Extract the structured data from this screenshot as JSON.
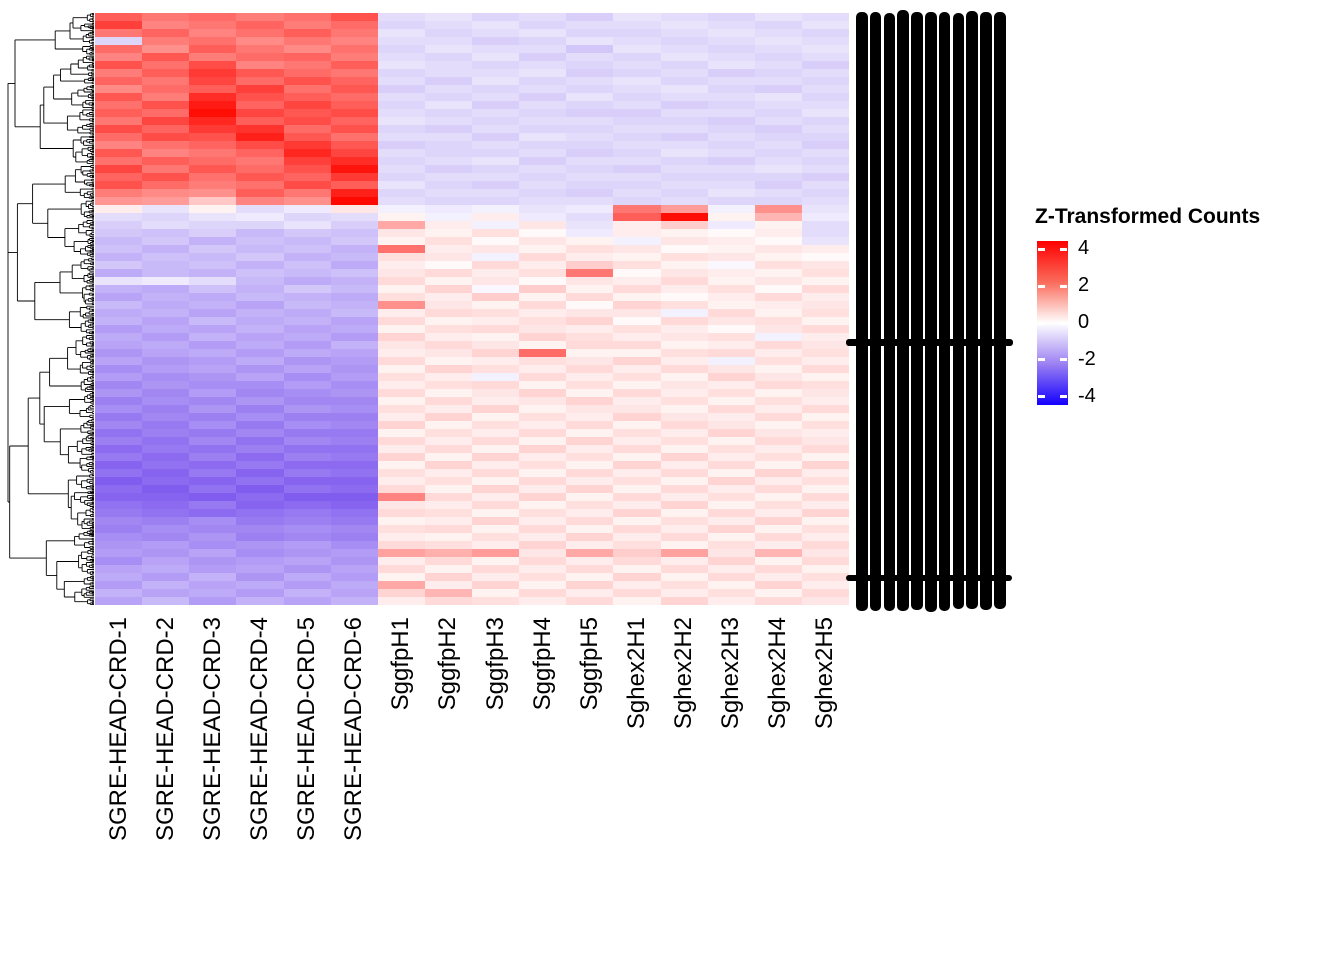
{
  "chart_data": {
    "type": "heatmap",
    "title": "",
    "xlabel": "",
    "ylabel": "",
    "columns": [
      "SGRE-HEAD-CRD-1",
      "SGRE-HEAD-CRD-2",
      "SGRE-HEAD-CRD-3",
      "SGRE-HEAD-CRD-4",
      "SGRE-HEAD-CRD-5",
      "SGRE-HEAD-CRD-6",
      "SggfpH1",
      "SggfpH2",
      "SggfpH3",
      "SggfpH4",
      "SggfpH5",
      "Sghex2H1",
      "Sghex2H2",
      "Sghex2H3",
      "Sghex2H4",
      "Sghex2H5"
    ],
    "legend": {
      "title": "Z-Transformed Counts",
      "ticks": [
        4,
        2,
        0,
        -2,
        -4
      ],
      "zlim": [
        -4.45,
        4.45
      ],
      "colors": {
        "high": "#FF0000",
        "mid": "#FFFFFF",
        "mid_low": "#8A5CF0",
        "low": "#0000FF"
      },
      "gradient": [
        "#FF0000",
        "#FA6B5B",
        "#FFFFFF",
        "#9B80F2",
        "#1400FF"
      ]
    },
    "dendrogram": {
      "side": "left",
      "color": "#000000"
    },
    "row_labels_overlapping": true,
    "matrix": [
      [
        2.6,
        2.2,
        2.4,
        2.1,
        2.3,
        2.8,
        -0.5,
        -0.4,
        -0.6,
        -0.5,
        -0.7,
        -0.4,
        -0.5,
        -0.6,
        -0.4,
        -0.5
      ],
      [
        3.1,
        2.0,
        2.2,
        2.5,
        2.1,
        2.4,
        -0.6,
        -0.5,
        -0.4,
        -0.6,
        -0.5,
        -0.5,
        -0.4,
        -0.5,
        -0.6,
        -0.4
      ],
      [
        2.2,
        2.5,
        2.0,
        2.3,
        2.6,
        2.2,
        -0.4,
        -0.6,
        -0.5,
        -0.4,
        -0.6,
        -0.6,
        -0.5,
        -0.4,
        -0.5,
        -0.6
      ],
      [
        -0.6,
        2.1,
        2.3,
        1.9,
        2.2,
        2.0,
        -0.5,
        -0.5,
        -0.7,
        -0.6,
        -0.4,
        -0.5,
        -0.6,
        -0.5,
        -0.4,
        -0.5
      ],
      [
        2.4,
        1.8,
        2.6,
        2.2,
        1.9,
        2.3,
        -0.6,
        -0.4,
        -0.5,
        -0.5,
        -0.8,
        -0.4,
        -0.5,
        -0.6,
        -0.5,
        -0.4
      ],
      [
        2.0,
        2.7,
        2.1,
        2.4,
        2.5,
        2.1,
        -0.5,
        -0.6,
        -0.4,
        -0.7,
        -0.5,
        -0.6,
        -0.4,
        -0.5,
        -0.6,
        -0.5
      ],
      [
        2.8,
        2.3,
        2.9,
        2.0,
        2.2,
        2.6,
        -0.4,
        -0.5,
        -0.6,
        -0.5,
        -0.6,
        -0.5,
        -0.6,
        -0.4,
        -0.5,
        -0.7
      ],
      [
        2.1,
        2.6,
        3.2,
        2.7,
        2.4,
        2.2,
        -0.6,
        -0.5,
        -0.5,
        -0.4,
        -0.7,
        -0.6,
        -0.5,
        -0.7,
        -0.6,
        -0.5
      ],
      [
        2.5,
        2.2,
        3.0,
        2.4,
        2.8,
        2.5,
        -0.5,
        -0.7,
        -0.4,
        -0.6,
        -0.5,
        -0.4,
        -0.6,
        -0.5,
        -0.5,
        -0.6
      ],
      [
        1.9,
        2.4,
        2.6,
        3.1,
        2.3,
        2.7,
        -0.7,
        -0.5,
        -0.6,
        -0.5,
        -0.6,
        -0.5,
        -0.4,
        -0.6,
        -0.7,
        -0.5
      ],
      [
        2.7,
        2.1,
        3.4,
        2.8,
        2.6,
        2.4,
        -0.5,
        -0.6,
        -0.5,
        -0.7,
        -0.4,
        -0.6,
        -0.5,
        -0.5,
        -0.4,
        -0.6
      ],
      [
        2.3,
        2.8,
        3.7,
        2.5,
        3.0,
        2.6,
        -0.6,
        -0.4,
        -0.7,
        -0.5,
        -0.6,
        -0.5,
        -0.7,
        -0.6,
        -0.5,
        -0.5
      ],
      [
        2.6,
        2.4,
        3.9,
        3.0,
        2.7,
        2.9,
        -0.5,
        -0.6,
        -0.5,
        -0.6,
        -0.7,
        -0.7,
        -0.5,
        -0.5,
        -0.6,
        -0.4
      ],
      [
        2.2,
        3.0,
        3.5,
        2.6,
        2.9,
        2.5,
        -0.4,
        -0.5,
        -0.6,
        -0.5,
        -0.5,
        -0.6,
        -0.6,
        -0.7,
        -0.5,
        -0.6
      ],
      [
        2.9,
        2.5,
        3.2,
        3.3,
        2.4,
        2.8,
        -0.6,
        -0.7,
        -0.5,
        -0.6,
        -0.6,
        -0.5,
        -0.5,
        -0.6,
        -0.7,
        -0.5
      ],
      [
        2.4,
        2.9,
        2.8,
        3.6,
        2.7,
        2.3,
        -0.5,
        -0.5,
        -0.7,
        -0.4,
        -0.5,
        -0.6,
        -0.7,
        -0.5,
        -0.6,
        -0.6
      ],
      [
        2.0,
        2.3,
        2.5,
        2.9,
        3.2,
        2.7,
        -0.7,
        -0.6,
        -0.5,
        -0.6,
        -0.6,
        -0.5,
        -0.5,
        -0.6,
        -0.5,
        -0.7
      ],
      [
        2.7,
        2.0,
        2.2,
        2.5,
        3.5,
        3.0,
        -0.5,
        -0.6,
        -0.6,
        -0.5,
        -0.7,
        -0.6,
        -0.4,
        -0.5,
        -0.6,
        -0.5
      ],
      [
        2.3,
        2.6,
        2.4,
        2.2,
        3.1,
        3.4,
        -0.6,
        -0.5,
        -0.4,
        -0.7,
        -0.5,
        -0.5,
        -0.6,
        -0.7,
        -0.5,
        -0.6
      ],
      [
        3.0,
        2.2,
        2.7,
        2.4,
        2.8,
        3.8,
        -0.5,
        -0.7,
        -0.6,
        -0.5,
        -0.6,
        -0.7,
        -0.5,
        -0.5,
        -0.4,
        -0.5
      ],
      [
        2.5,
        2.8,
        2.3,
        2.7,
        2.5,
        3.2,
        -0.6,
        -0.5,
        -0.5,
        -0.6,
        -0.5,
        -0.5,
        -0.6,
        -0.6,
        -0.6,
        -0.7
      ],
      [
        2.8,
        2.4,
        2.1,
        2.3,
        2.9,
        2.6,
        -0.4,
        -0.6,
        -0.7,
        -0.5,
        -0.6,
        -0.6,
        -0.5,
        -0.5,
        -0.7,
        -0.5
      ],
      [
        2.1,
        1.9,
        1.8,
        2.6,
        2.2,
        3.6,
        -0.6,
        -0.5,
        -0.5,
        -0.6,
        -0.7,
        -0.5,
        -0.6,
        -0.4,
        -0.5,
        -0.6
      ],
      [
        1.7,
        1.6,
        0.9,
        2.0,
        1.8,
        4.0,
        -0.5,
        -0.6,
        -0.6,
        -0.5,
        -0.5,
        -0.6,
        -0.5,
        -0.6,
        -0.6,
        -0.5
      ],
      [
        0.3,
        -0.4,
        0.2,
        -0.5,
        -0.3,
        0.4,
        -0.2,
        -0.3,
        -0.2,
        -0.4,
        -0.3,
        2.2,
        1.6,
        -0.2,
        1.8,
        -0.4
      ],
      [
        -0.5,
        -0.6,
        -0.4,
        -0.3,
        -0.6,
        -0.5,
        0.2,
        -0.2,
        0.3,
        -0.3,
        -0.5,
        2.6,
        3.9,
        0.2,
        1.2,
        -0.3
      ],
      [
        -0.7,
        -0.5,
        -0.6,
        -0.6,
        -0.4,
        -0.7,
        1.4,
        0.3,
        -0.2,
        0.4,
        -0.4,
        0.3,
        0.8,
        -0.3,
        0.2,
        -0.5
      ],
      [
        -0.8,
        -0.9,
        -0.7,
        -1.0,
        -0.8,
        -0.9,
        0.4,
        0.2,
        0.5,
        0.1,
        -0.3,
        0.3,
        0.2,
        0.1,
        0.3,
        -0.5
      ],
      [
        -1.0,
        -0.8,
        -1.1,
        -0.9,
        -1.0,
        -0.8,
        0.2,
        0.5,
        0.1,
        0.4,
        0.2,
        -0.2,
        0.4,
        0.3,
        0.1,
        -0.4
      ],
      [
        -0.9,
        -1.1,
        -0.8,
        -1.0,
        -0.9,
        -1.1,
        2.3,
        0.3,
        0.4,
        0.2,
        0.5,
        0.4,
        0.1,
        0.2,
        0.4,
        0.3
      ],
      [
        -1.1,
        -0.9,
        -1.0,
        -0.8,
        -1.1,
        -1.0,
        0.5,
        0.4,
        -0.2,
        0.6,
        0.3,
        0.2,
        0.5,
        0.4,
        0.2,
        0.1
      ],
      [
        -0.8,
        -1.0,
        -0.9,
        -1.1,
        -0.9,
        -1.2,
        0.3,
        0.1,
        0.6,
        0.3,
        0.8,
        0.5,
        0.2,
        -0.1,
        0.5,
        0.4
      ],
      [
        -1.2,
        -1.0,
        -1.1,
        -0.9,
        -1.0,
        -0.9,
        0.4,
        0.6,
        0.3,
        0.5,
        2.2,
        0.1,
        0.4,
        0.3,
        0.2,
        0.5
      ],
      [
        -0.4,
        -0.3,
        -0.5,
        -1.0,
        -1.2,
        -1.1,
        0.6,
        0.2,
        0.4,
        0.1,
        0.4,
        0.3,
        0.6,
        0.2,
        0.4,
        0.2
      ],
      [
        -1.1,
        -1.2,
        -0.9,
        -1.1,
        -0.8,
        -1.0,
        0.2,
        0.7,
        -0.1,
        0.8,
        0.2,
        0.6,
        0.3,
        0.5,
        0.1,
        0.6
      ],
      [
        -1.3,
        -1.1,
        -1.2,
        -1.0,
        -1.1,
        -1.2,
        0.5,
        0.3,
        0.8,
        0.2,
        0.6,
        0.2,
        0.1,
        0.3,
        0.6,
        0.3
      ],
      [
        -1.0,
        -1.2,
        -1.1,
        -1.3,
        -1.0,
        -1.1,
        1.8,
        0.4,
        0.2,
        0.6,
        0.1,
        0.7,
        0.5,
        0.2,
        0.3,
        0.4
      ],
      [
        -1.2,
        -1.1,
        -1.3,
        -1.1,
        -1.2,
        -1.0,
        0.3,
        0.6,
        0.5,
        0.3,
        0.4,
        0.4,
        -0.2,
        0.6,
        0.2,
        0.5
      ],
      [
        -1.1,
        -1.3,
        -1.0,
        -1.2,
        -1.1,
        -1.3,
        0.6,
        0.2,
        0.3,
        0.5,
        0.7,
        0.1,
        0.6,
        0.4,
        0.5,
        0.2
      ],
      [
        -1.4,
        -1.2,
        -1.3,
        -1.1,
        -1.3,
        -1.2,
        0.2,
        0.5,
        0.6,
        0.4,
        0.3,
        0.5,
        0.3,
        0.1,
        0.4,
        0.6
      ],
      [
        -1.2,
        -1.4,
        -1.1,
        -1.3,
        -1.2,
        -1.4,
        0.7,
        0.3,
        0.2,
        0.7,
        0.5,
        0.3,
        0.4,
        0.5,
        -0.2,
        0.3
      ],
      [
        -1.3,
        -1.2,
        -1.4,
        -1.2,
        -1.4,
        -1.1,
        0.4,
        0.6,
        0.4,
        0.2,
        0.6,
        0.6,
        0.2,
        0.3,
        0.6,
        0.4
      ],
      [
        -1.5,
        -1.3,
        -1.2,
        -1.4,
        -1.2,
        -1.3,
        0.3,
        0.4,
        0.7,
        2.4,
        0.2,
        0.2,
        0.5,
        0.6,
        0.3,
        0.5
      ],
      [
        -1.3,
        -1.5,
        -1.4,
        -1.2,
        -1.5,
        -1.4,
        0.6,
        0.2,
        0.3,
        0.5,
        0.4,
        0.7,
        0.3,
        -0.2,
        0.5,
        0.3
      ],
      [
        -1.6,
        -1.4,
        -1.3,
        -1.5,
        -1.3,
        -1.5,
        0.2,
        0.7,
        0.5,
        0.3,
        0.6,
        0.3,
        0.6,
        0.4,
        0.2,
        0.6
      ],
      [
        -1.4,
        -1.6,
        -1.5,
        -1.3,
        -1.6,
        -1.4,
        0.5,
        0.3,
        -0.2,
        0.6,
        0.3,
        0.5,
        0.2,
        0.7,
        0.4,
        0.2
      ],
      [
        -1.7,
        -1.5,
        -1.6,
        -1.6,
        -1.4,
        -1.6,
        0.3,
        0.5,
        0.6,
        0.2,
        0.5,
        0.2,
        0.4,
        0.3,
        0.6,
        0.5
      ],
      [
        -1.5,
        -1.7,
        -1.4,
        -1.7,
        -1.6,
        -1.5,
        0.6,
        0.2,
        0.4,
        0.7,
        0.2,
        0.6,
        0.3,
        0.5,
        0.2,
        0.4
      ],
      [
        -1.8,
        -1.6,
        -1.7,
        -1.5,
        -1.7,
        -1.7,
        0.2,
        0.6,
        0.3,
        0.4,
        0.7,
        0.3,
        0.5,
        0.2,
        0.5,
        0.3
      ],
      [
        -1.6,
        -1.8,
        -1.5,
        -1.8,
        -1.5,
        -1.6,
        0.5,
        0.3,
        0.7,
        0.2,
        0.4,
        0.4,
        0.2,
        0.6,
        0.3,
        0.6
      ],
      [
        -1.9,
        -1.7,
        -1.8,
        -1.6,
        -1.8,
        -1.8,
        0.3,
        0.7,
        0.2,
        0.5,
        0.3,
        0.7,
        0.4,
        0.3,
        0.6,
        0.2
      ],
      [
        -1.7,
        -1.9,
        -1.6,
        -1.9,
        -1.6,
        -1.7,
        0.7,
        0.2,
        0.5,
        0.3,
        0.6,
        0.2,
        0.6,
        0.4,
        0.2,
        0.5
      ],
      [
        -2.0,
        -1.8,
        -1.9,
        -1.7,
        -1.9,
        -1.9,
        0.2,
        0.5,
        0.3,
        0.6,
        0.2,
        0.5,
        0.3,
        0.7,
        0.4,
        0.3
      ],
      [
        -1.8,
        -2.0,
        -1.7,
        -2.0,
        -1.7,
        -1.8,
        0.6,
        0.3,
        0.6,
        0.2,
        0.7,
        0.3,
        0.5,
        0.2,
        0.6,
        0.4
      ],
      [
        -2.1,
        -1.9,
        -2.0,
        -1.8,
        -2.0,
        -2.0,
        0.3,
        0.6,
        0.2,
        0.7,
        0.3,
        0.6,
        0.2,
        0.5,
        0.3,
        0.6
      ],
      [
        -1.9,
        -2.1,
        -1.8,
        -2.1,
        -1.8,
        -1.9,
        0.7,
        0.2,
        0.7,
        0.3,
        0.5,
        0.2,
        0.7,
        0.3,
        0.5,
        0.2
      ],
      [
        -2.2,
        -2.0,
        -2.1,
        -1.9,
        -2.1,
        -2.1,
        0.2,
        0.7,
        0.3,
        0.5,
        0.2,
        0.7,
        0.3,
        0.6,
        0.2,
        0.7
      ],
      [
        -2.0,
        -2.2,
        -1.9,
        -2.2,
        -1.9,
        -2.0,
        0.5,
        0.3,
        0.6,
        0.2,
        0.6,
        0.3,
        0.6,
        0.2,
        0.7,
        0.3
      ],
      [
        -2.3,
        -2.1,
        -2.2,
        -2.0,
        -2.2,
        -2.2,
        0.3,
        0.5,
        0.2,
        0.6,
        0.3,
        0.5,
        0.2,
        0.7,
        0.3,
        0.5
      ],
      [
        -2.1,
        -2.3,
        -2.0,
        -2.3,
        -2.0,
        -2.1,
        0.6,
        0.2,
        0.7,
        0.3,
        0.7,
        0.2,
        0.6,
        0.3,
        0.6,
        0.2
      ],
      [
        -2.2,
        -2.2,
        -2.3,
        -2.1,
        -2.3,
        -2.3,
        2.0,
        0.6,
        0.3,
        0.7,
        0.2,
        0.6,
        0.3,
        0.5,
        0.2,
        0.6
      ],
      [
        -2.0,
        -2.1,
        -1.9,
        -2.2,
        -2.1,
        -2.2,
        0.4,
        0.3,
        0.6,
        0.2,
        0.5,
        0.3,
        0.7,
        0.2,
        0.5,
        0.3
      ],
      [
        -1.9,
        -2.0,
        -2.1,
        -2.0,
        -1.9,
        -2.0,
        0.6,
        0.5,
        0.2,
        0.5,
        0.3,
        0.7,
        0.2,
        0.6,
        0.3,
        0.7
      ],
      [
        -1.7,
        -1.8,
        -1.6,
        -1.9,
        -1.8,
        -1.9,
        0.2,
        0.3,
        0.7,
        0.3,
        0.6,
        0.2,
        0.5,
        0.3,
        0.7,
        0.2
      ],
      [
        -1.8,
        -1.6,
        -1.7,
        -1.7,
        -1.6,
        -1.7,
        0.5,
        0.6,
        0.2,
        0.6,
        0.2,
        0.6,
        0.3,
        0.7,
        0.2,
        0.5
      ],
      [
        -1.6,
        -1.7,
        -1.5,
        -1.8,
        -1.7,
        -1.8,
        0.3,
        0.2,
        0.5,
        0.3,
        0.7,
        0.3,
        0.6,
        0.2,
        0.6,
        0.3
      ],
      [
        -1.5,
        -1.4,
        -1.6,
        -1.5,
        -1.4,
        -1.6,
        0.6,
        0.5,
        0.3,
        0.7,
        0.3,
        0.5,
        0.2,
        0.5,
        0.3,
        0.6
      ],
      [
        -1.4,
        -1.5,
        -1.3,
        -1.6,
        -1.5,
        -1.4,
        1.5,
        1.3,
        1.6,
        0.4,
        1.4,
        0.8,
        1.5,
        0.4,
        1.2,
        0.4
      ],
      [
        -1.6,
        -1.3,
        -1.5,
        -1.4,
        -1.3,
        -1.5,
        0.3,
        0.6,
        0.2,
        0.6,
        0.3,
        0.6,
        0.3,
        0.7,
        0.2,
        0.6
      ],
      [
        -1.3,
        -1.2,
        -1.4,
        -1.3,
        -1.5,
        -1.3,
        0.6,
        0.2,
        0.6,
        0.3,
        0.6,
        0.2,
        0.6,
        0.3,
        0.6,
        0.2
      ],
      [
        -1.2,
        -1.4,
        -1.1,
        -1.5,
        -1.2,
        -1.4,
        0.2,
        0.7,
        0.3,
        0.5,
        0.2,
        0.7,
        0.2,
        0.6,
        0.3,
        0.5
      ],
      [
        -1.4,
        -1.1,
        -1.3,
        -1.2,
        -1.4,
        -1.2,
        1.4,
        0.3,
        0.7,
        0.2,
        0.7,
        0.3,
        0.5,
        0.2,
        0.7,
        0.3
      ],
      [
        -1.1,
        -1.3,
        -1.2,
        -1.4,
        -1.1,
        -1.3,
        0.7,
        1.2,
        0.2,
        0.6,
        0.3,
        0.6,
        0.3,
        0.5,
        0.2,
        0.6
      ],
      [
        -1.3,
        -1.0,
        -1.4,
        -1.1,
        -1.3,
        -1.1,
        0.3,
        0.6,
        0.5,
        0.3,
        0.6,
        0.2,
        0.7,
        0.3,
        0.6,
        0.4
      ]
    ]
  }
}
